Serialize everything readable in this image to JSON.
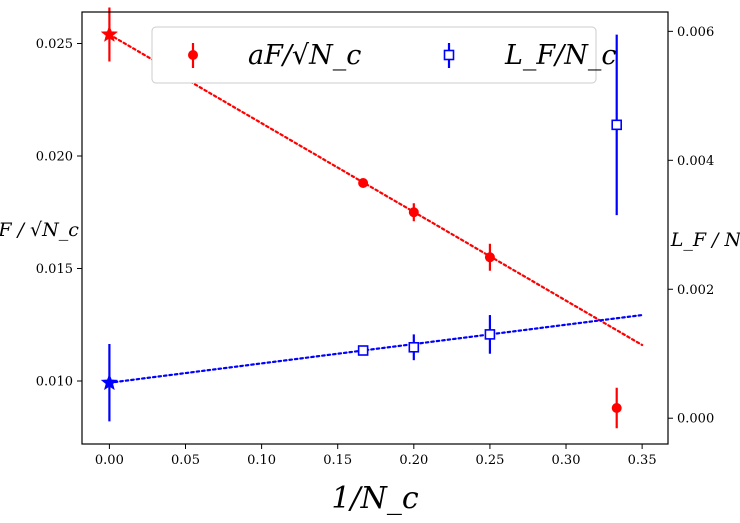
{
  "chart_data": {
    "type": "scatter",
    "xlabel": "1/N_c",
    "ylabel_left": "aF / √N_c",
    "ylabel_right": "L_F / N_c",
    "xlim": [
      -0.018,
      0.367
    ],
    "ylim_left": [
      0.0072,
      0.0264
    ],
    "ylim_right": [
      -0.0004,
      0.0063
    ],
    "xticks": [
      "0.00",
      "0.05",
      "0.10",
      "0.15",
      "0.20",
      "0.25",
      "0.30",
      "0.35"
    ],
    "yticks_left": [
      "0.010",
      "0.015",
      "0.020",
      "0.025"
    ],
    "yticks_right": [
      "0.000",
      "0.002",
      "0.004",
      "0.006"
    ],
    "grid": false,
    "legend_position": "top-center",
    "series": [
      {
        "name": "aF/√N_c",
        "axis": "left",
        "color": "#ff0000",
        "marker": "circle",
        "points": [
          {
            "x": 0.1667,
            "y": 0.0188,
            "err": 0.0001
          },
          {
            "x": 0.2,
            "y": 0.0175,
            "err": 0.0004
          },
          {
            "x": 0.25,
            "y": 0.0155,
            "err": 0.0006
          },
          {
            "x": 0.3333,
            "y": 0.0088,
            "err": 0.0009
          }
        ],
        "extrapolated": {
          "x": 0.0,
          "y": 0.0254,
          "err": 0.0012,
          "marker": "star"
        },
        "fit": {
          "x": [
            0.0,
            0.35
          ],
          "y": [
            0.0254,
            0.0116
          ],
          "style": "dotted"
        }
      },
      {
        "name": "L_F/N_c",
        "axis": "right",
        "color": "#0000ff",
        "marker": "square-open",
        "points": [
          {
            "x": 0.1667,
            "y": 0.00105,
            "err": 7e-05
          },
          {
            "x": 0.2,
            "y": 0.0011,
            "err": 0.0002
          },
          {
            "x": 0.25,
            "y": 0.0013,
            "err": 0.0003
          },
          {
            "x": 0.3333,
            "y": 0.00455,
            "err": 0.0014
          }
        ],
        "extrapolated": {
          "x": 0.0,
          "y": 0.00055,
          "err": 0.0006,
          "marker": "star"
        },
        "fit": {
          "x": [
            0.0,
            0.35
          ],
          "y": [
            0.00055,
            0.0016
          ],
          "style": "dotted"
        }
      }
    ]
  }
}
